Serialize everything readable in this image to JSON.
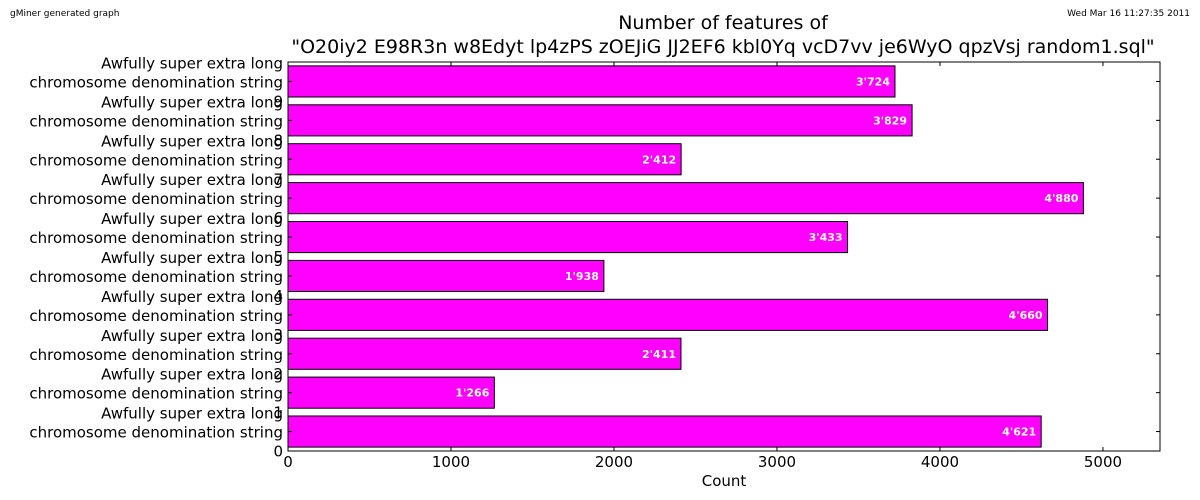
{
  "header": {
    "generator": "gMiner generated graph",
    "timestamp": "Wed Mar 16 11:27:35 2011"
  },
  "colors": {
    "bar": "#ff00ff",
    "edge": "#000000",
    "label": "#ffffff"
  },
  "chart_data": {
    "type": "bar",
    "orientation": "horizontal",
    "title_line1": "Number of features of",
    "title_line2": "\"O20iy2 E98R3n w8Edyt lp4zPS zOEJiG JJ2EF6 kbl0Yq vcD7vv je6WyO qpzVsj random1.sql\"",
    "xlabel": "Count",
    "ylabel": "",
    "xlim": [
      0,
      5350
    ],
    "xticks": [
      0,
      1000,
      2000,
      3000,
      4000,
      5000
    ],
    "xtick_labels": [
      "0",
      "1000",
      "2000",
      "3000",
      "4000",
      "5000"
    ],
    "category_prefix": [
      "Awfully super extra long",
      "chromosome denomination string"
    ],
    "category_suffixes": [
      "9",
      "8",
      "7",
      "6",
      "5",
      "4",
      "3",
      "2",
      "1",
      "0"
    ],
    "zero_tick_label": "0",
    "values": [
      3724,
      3829,
      2412,
      4880,
      3433,
      1938,
      4660,
      2411,
      1266,
      4621
    ],
    "value_labels": [
      "3'724",
      "3'829",
      "2'412",
      "4'880",
      "3'433",
      "1'938",
      "4'660",
      "2'411",
      "1'266",
      "4'621"
    ]
  }
}
